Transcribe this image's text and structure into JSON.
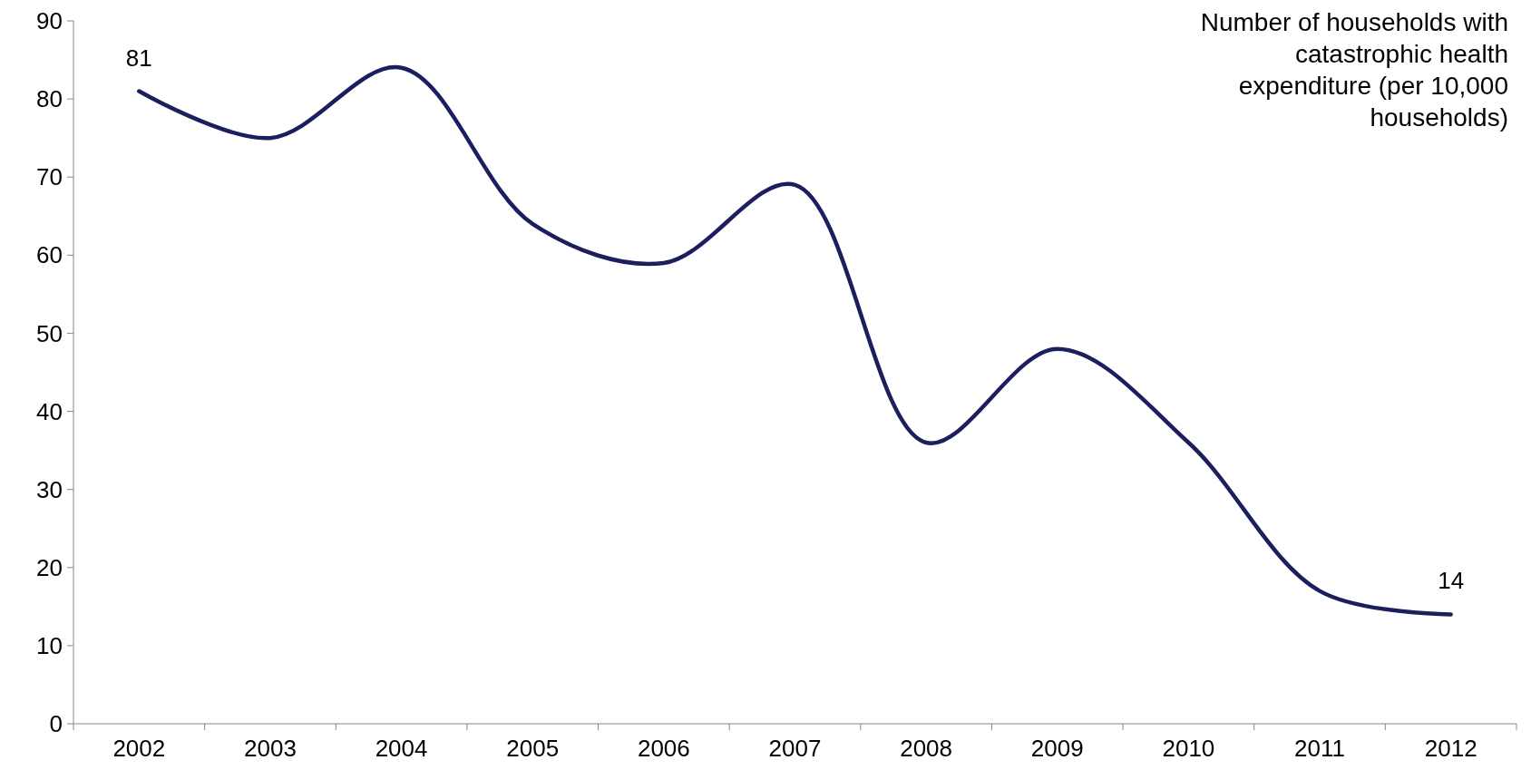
{
  "chart_data": {
    "type": "line",
    "title": "Number of households with catastrophic health expenditure (per 10,000 households)",
    "categories": [
      "2002",
      "2003",
      "2004",
      "2005",
      "2006",
      "2007",
      "2008",
      "2009",
      "2010",
      "2011",
      "2012"
    ],
    "series": [
      {
        "color": "#1c1f5e",
        "values": [
          81,
          75,
          84,
          64,
          59,
          69,
          36,
          48,
          36,
          17,
          14
        ],
        "value_labels": [
          "81",
          null,
          null,
          null,
          null,
          null,
          null,
          null,
          null,
          null,
          "14"
        ]
      }
    ],
    "ylim": [
      0,
      90
    ],
    "yticks": [
      0,
      10,
      20,
      30,
      40,
      50,
      60,
      70,
      80,
      90
    ],
    "grid": false,
    "marker": "none",
    "line_style": "solid"
  }
}
